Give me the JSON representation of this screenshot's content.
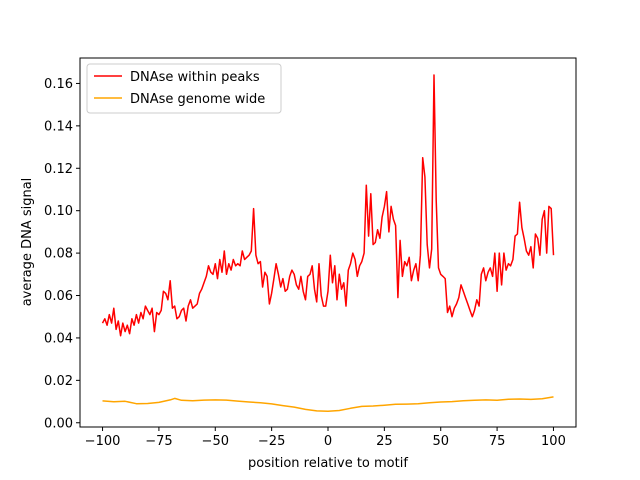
{
  "chart_data": {
    "type": "line",
    "title": "",
    "xlabel": "position relative to motif",
    "ylabel": "average DNA signal",
    "xlim": [
      -110,
      110
    ],
    "ylim": [
      -0.002,
      0.172
    ],
    "xticks": [
      -100,
      -75,
      -50,
      -25,
      0,
      25,
      50,
      75,
      100
    ],
    "xtick_labels": [
      "−100",
      "−75",
      "−50",
      "−25",
      "0",
      "25",
      "50",
      "75",
      "100"
    ],
    "yticks": [
      0.0,
      0.02,
      0.04,
      0.06,
      0.08,
      0.1,
      0.12,
      0.14,
      0.16
    ],
    "ytick_labels": [
      "0.00",
      "0.02",
      "0.04",
      "0.06",
      "0.08",
      "0.10",
      "0.12",
      "0.14",
      "0.16"
    ],
    "grid": false,
    "legend_position": "top-left",
    "series": [
      {
        "name": "DNAse within peaks",
        "color": "#ff0000",
        "points": [
          [
            -100,
            0.047
          ],
          [
            -99,
            0.049
          ],
          [
            -98,
            0.046
          ],
          [
            -97,
            0.051
          ],
          [
            -96,
            0.047
          ],
          [
            -95,
            0.054
          ],
          [
            -94,
            0.044
          ],
          [
            -93,
            0.048
          ],
          [
            -92,
            0.041
          ],
          [
            -91,
            0.047
          ],
          [
            -90,
            0.043
          ],
          [
            -89,
            0.046
          ],
          [
            -88,
            0.042
          ],
          [
            -87,
            0.049
          ],
          [
            -86,
            0.046
          ],
          [
            -85,
            0.051
          ],
          [
            -84,
            0.047
          ],
          [
            -83,
            0.052
          ],
          [
            -82,
            0.049
          ],
          [
            -81,
            0.055
          ],
          [
            -80,
            0.053
          ],
          [
            -79,
            0.051
          ],
          [
            -78,
            0.054
          ],
          [
            -77,
            0.043
          ],
          [
            -76,
            0.052
          ],
          [
            -75,
            0.051
          ],
          [
            -74,
            0.053
          ],
          [
            -73,
            0.062
          ],
          [
            -72,
            0.061
          ],
          [
            -71,
            0.058
          ],
          [
            -70,
            0.067
          ],
          [
            -69,
            0.054
          ],
          [
            -68,
            0.055
          ],
          [
            -67,
            0.049
          ],
          [
            -66,
            0.05
          ],
          [
            -65,
            0.053
          ],
          [
            -64,
            0.054
          ],
          [
            -63,
            0.048
          ],
          [
            -62,
            0.055
          ],
          [
            -61,
            0.058
          ],
          [
            -60,
            0.054
          ],
          [
            -59,
            0.055
          ],
          [
            -58,
            0.056
          ],
          [
            -57,
            0.061
          ],
          [
            -56,
            0.063
          ],
          [
            -55,
            0.066
          ],
          [
            -54,
            0.069
          ],
          [
            -53,
            0.074
          ],
          [
            -52,
            0.071
          ],
          [
            -51,
            0.07
          ],
          [
            -50,
            0.075
          ],
          [
            -49,
            0.068
          ],
          [
            -48,
            0.077
          ],
          [
            -47,
            0.071
          ],
          [
            -46,
            0.081
          ],
          [
            -45,
            0.07
          ],
          [
            -44,
            0.075
          ],
          [
            -43,
            0.072
          ],
          [
            -42,
            0.077
          ],
          [
            -41,
            0.074
          ],
          [
            -40,
            0.075
          ],
          [
            -39,
            0.074
          ],
          [
            -38,
            0.081
          ],
          [
            -37,
            0.077
          ],
          [
            -36,
            0.078
          ],
          [
            -35,
            0.079
          ],
          [
            -34,
            0.081
          ],
          [
            -33,
            0.101
          ],
          [
            -32,
            0.079
          ],
          [
            -31,
            0.075
          ],
          [
            -30,
            0.076
          ],
          [
            -29,
            0.064
          ],
          [
            -28,
            0.071
          ],
          [
            -27,
            0.069
          ],
          [
            -26,
            0.056
          ],
          [
            -25,
            0.061
          ],
          [
            -24,
            0.068
          ],
          [
            -23,
            0.075
          ],
          [
            -22,
            0.07
          ],
          [
            -21,
            0.064
          ],
          [
            -20,
            0.068
          ],
          [
            -19,
            0.062
          ],
          [
            -18,
            0.063
          ],
          [
            -17,
            0.069
          ],
          [
            -16,
            0.072
          ],
          [
            -15,
            0.07
          ],
          [
            -14,
            0.065
          ],
          [
            -13,
            0.063
          ],
          [
            -12,
            0.069
          ],
          [
            -11,
            0.062
          ],
          [
            -10,
            0.058
          ],
          [
            -9,
            0.069
          ],
          [
            -8,
            0.07
          ],
          [
            -7,
            0.074
          ],
          [
            -6,
            0.063
          ],
          [
            -5,
            0.057
          ],
          [
            -4,
            0.075
          ],
          [
            -3,
            0.06
          ],
          [
            -2,
            0.055
          ],
          [
            -1,
            0.055
          ],
          [
            0,
            0.062
          ],
          [
            1,
            0.079
          ],
          [
            2,
            0.066
          ],
          [
            3,
            0.074
          ],
          [
            4,
            0.058
          ],
          [
            5,
            0.07
          ],
          [
            6,
            0.063
          ],
          [
            7,
            0.066
          ],
          [
            8,
            0.055
          ],
          [
            9,
            0.072
          ],
          [
            10,
            0.075
          ],
          [
            11,
            0.08
          ],
          [
            12,
            0.077
          ],
          [
            13,
            0.069
          ],
          [
            14,
            0.074
          ],
          [
            15,
            0.076
          ],
          [
            16,
            0.08
          ],
          [
            17,
            0.112
          ],
          [
            18,
            0.088
          ],
          [
            19,
            0.108
          ],
          [
            20,
            0.084
          ],
          [
            21,
            0.085
          ],
          [
            22,
            0.091
          ],
          [
            23,
            0.087
          ],
          [
            24,
            0.097
          ],
          [
            25,
            0.102
          ],
          [
            26,
            0.109
          ],
          [
            27,
            0.09
          ],
          [
            28,
            0.102
          ],
          [
            29,
            0.096
          ],
          [
            30,
            0.093
          ],
          [
            31,
            0.059
          ],
          [
            32,
            0.086
          ],
          [
            33,
            0.069
          ],
          [
            34,
            0.076
          ],
          [
            35,
            0.074
          ],
          [
            36,
            0.078
          ],
          [
            37,
            0.067
          ],
          [
            38,
            0.072
          ],
          [
            39,
            0.075
          ],
          [
            40,
            0.067
          ],
          [
            41,
            0.079
          ],
          [
            42,
            0.125
          ],
          [
            43,
            0.116
          ],
          [
            44,
            0.084
          ],
          [
            45,
            0.073
          ],
          [
            46,
            0.082
          ],
          [
            47,
            0.164
          ],
          [
            48,
            0.105
          ],
          [
            49,
            0.073
          ],
          [
            50,
            0.07
          ],
          [
            51,
            0.069
          ],
          [
            52,
            0.068
          ],
          [
            53,
            0.052
          ],
          [
            54,
            0.055
          ],
          [
            55,
            0.05
          ],
          [
            56,
            0.054
          ],
          [
            57,
            0.056
          ],
          [
            58,
            0.059
          ],
          [
            59,
            0.065
          ],
          [
            60,
            0.062
          ],
          [
            61,
            0.059
          ],
          [
            62,
            0.056
          ],
          [
            63,
            0.053
          ],
          [
            64,
            0.05
          ],
          [
            65,
            0.053
          ],
          [
            66,
            0.058
          ],
          [
            67,
            0.055
          ],
          [
            68,
            0.07
          ],
          [
            69,
            0.073
          ],
          [
            70,
            0.067
          ],
          [
            71,
            0.071
          ],
          [
            72,
            0.073
          ],
          [
            73,
            0.069
          ],
          [
            74,
            0.08
          ],
          [
            75,
            0.062
          ],
          [
            76,
            0.08
          ],
          [
            77,
            0.065
          ],
          [
            78,
            0.08
          ],
          [
            79,
            0.072
          ],
          [
            80,
            0.075
          ],
          [
            81,
            0.074
          ],
          [
            82,
            0.077
          ],
          [
            83,
            0.088
          ],
          [
            84,
            0.089
          ],
          [
            85,
            0.104
          ],
          [
            86,
            0.092
          ],
          [
            87,
            0.087
          ],
          [
            88,
            0.081
          ],
          [
            89,
            0.079
          ],
          [
            90,
            0.083
          ],
          [
            91,
            0.073
          ],
          [
            92,
            0.089
          ],
          [
            93,
            0.087
          ],
          [
            94,
            0.079
          ],
          [
            95,
            0.096
          ],
          [
            96,
            0.1
          ],
          [
            97,
            0.08
          ],
          [
            98,
            0.102
          ],
          [
            99,
            0.101
          ],
          [
            100,
            0.079
          ]
        ]
      },
      {
        "name": "DNAse genome wide",
        "color": "#ffa500",
        "points": [
          [
            -100,
            0.0103
          ],
          [
            -95,
            0.0099
          ],
          [
            -90,
            0.0101
          ],
          [
            -85,
            0.009
          ],
          [
            -80,
            0.0091
          ],
          [
            -75,
            0.0096
          ],
          [
            -70,
            0.0108
          ],
          [
            -68,
            0.0115
          ],
          [
            -65,
            0.0106
          ],
          [
            -60,
            0.0104
          ],
          [
            -55,
            0.0107
          ],
          [
            -50,
            0.0108
          ],
          [
            -45,
            0.0107
          ],
          [
            -40,
            0.0102
          ],
          [
            -35,
            0.0098
          ],
          [
            -30,
            0.0094
          ],
          [
            -25,
            0.0089
          ],
          [
            -20,
            0.0081
          ],
          [
            -15,
            0.0074
          ],
          [
            -10,
            0.0063
          ],
          [
            -5,
            0.0056
          ],
          [
            0,
            0.0054
          ],
          [
            5,
            0.0058
          ],
          [
            10,
            0.0068
          ],
          [
            15,
            0.0077
          ],
          [
            20,
            0.0079
          ],
          [
            25,
            0.0083
          ],
          [
            30,
            0.0087
          ],
          [
            35,
            0.0088
          ],
          [
            40,
            0.009
          ],
          [
            45,
            0.0094
          ],
          [
            50,
            0.0098
          ],
          [
            55,
            0.01
          ],
          [
            60,
            0.0104
          ],
          [
            65,
            0.0106
          ],
          [
            70,
            0.0108
          ],
          [
            75,
            0.0106
          ],
          [
            80,
            0.0111
          ],
          [
            85,
            0.0112
          ],
          [
            90,
            0.011
          ],
          [
            95,
            0.0113
          ],
          [
            100,
            0.0122
          ]
        ]
      }
    ]
  }
}
